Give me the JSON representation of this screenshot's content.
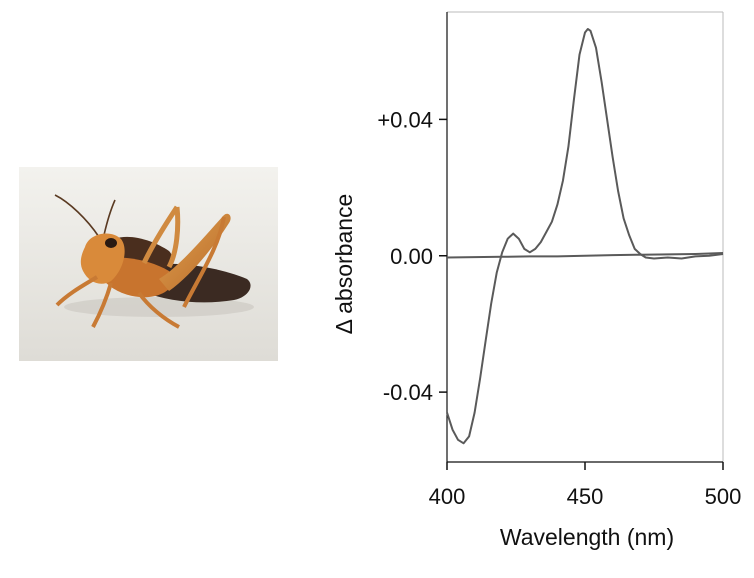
{
  "photo": {
    "subject_icon": "grasshopper-photo",
    "colors": {
      "background": "#eceae6",
      "body": "#c8742e",
      "abdomen": "#3b2a22",
      "head": "#d98a3a"
    }
  },
  "chart_data": {
    "type": "line",
    "title": "",
    "xlabel": "Wavelength (nm)",
    "ylabel": "Δ  absorbance",
    "xlim": [
      400,
      500
    ],
    "ylim": [
      -0.0605,
      0.0715
    ],
    "grid": false,
    "x_ticks": [
      {
        "value": 400,
        "label": "400"
      },
      {
        "value": 450,
        "label": "450"
      },
      {
        "value": 500,
        "label": "500"
      }
    ],
    "y_ticks": [
      {
        "value": 0.04,
        "label": "+0.04"
      },
      {
        "value": 0.0,
        "label": "0.00"
      },
      {
        "value": -0.04,
        "label": "-0.04"
      }
    ],
    "series": [
      {
        "color": "#5a5a5a",
        "points": [
          [
            400,
            -0.046
          ],
          [
            402,
            -0.051
          ],
          [
            404,
            -0.054
          ],
          [
            406,
            -0.055
          ],
          [
            408,
            -0.053
          ],
          [
            410,
            -0.046
          ],
          [
            412,
            -0.036
          ],
          [
            414,
            -0.025
          ],
          [
            416,
            -0.014
          ],
          [
            418,
            -0.005
          ],
          [
            420,
            0.001
          ],
          [
            422,
            0.005
          ],
          [
            424,
            0.0065
          ],
          [
            426,
            0.005
          ],
          [
            428,
            0.002
          ],
          [
            430,
            0.001
          ],
          [
            432,
            0.002
          ],
          [
            434,
            0.004
          ],
          [
            436,
            0.007
          ],
          [
            438,
            0.01
          ],
          [
            440,
            0.015
          ],
          [
            442,
            0.022
          ],
          [
            444,
            0.032
          ],
          [
            446,
            0.046
          ],
          [
            448,
            0.059
          ],
          [
            450,
            0.0655
          ],
          [
            451,
            0.0665
          ],
          [
            452,
            0.066
          ],
          [
            454,
            0.061
          ],
          [
            456,
            0.051
          ],
          [
            458,
            0.04
          ],
          [
            460,
            0.029
          ],
          [
            462,
            0.019
          ],
          [
            464,
            0.011
          ],
          [
            466,
            0.006
          ],
          [
            468,
            0.002
          ],
          [
            470,
            0.0005
          ],
          [
            472,
            -0.0005
          ],
          [
            475,
            -0.0008
          ],
          [
            480,
            -0.0005
          ],
          [
            485,
            -0.0008
          ],
          [
            490,
            -0.0002
          ],
          [
            495,
            0.0
          ],
          [
            500,
            0.0005
          ]
        ]
      },
      {
        "color": "#5a5a5a",
        "points": [
          [
            400,
            -0.0005
          ],
          [
            410,
            -0.0004
          ],
          [
            420,
            -0.0003
          ],
          [
            430,
            -0.0002
          ],
          [
            440,
            -0.0002
          ],
          [
            450,
            0.0
          ],
          [
            460,
            0.0002
          ],
          [
            470,
            0.0003
          ],
          [
            480,
            0.0004
          ],
          [
            490,
            0.0005
          ],
          [
            500,
            0.0008
          ]
        ]
      }
    ]
  }
}
